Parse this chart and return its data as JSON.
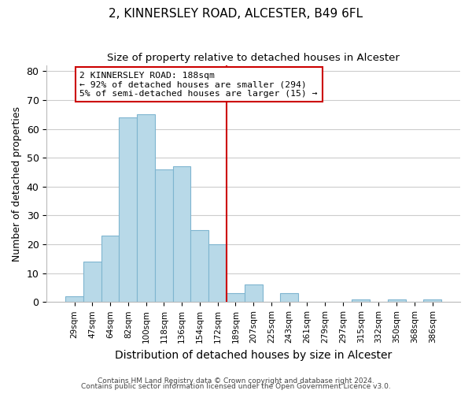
{
  "title": "2, KINNERSLEY ROAD, ALCESTER, B49 6FL",
  "subtitle": "Size of property relative to detached houses in Alcester",
  "xlabel": "Distribution of detached houses by size in Alcester",
  "ylabel": "Number of detached properties",
  "bar_labels": [
    "29sqm",
    "47sqm",
    "64sqm",
    "82sqm",
    "100sqm",
    "118sqm",
    "136sqm",
    "154sqm",
    "172sqm",
    "189sqm",
    "207sqm",
    "225sqm",
    "243sqm",
    "261sqm",
    "279sqm",
    "297sqm",
    "315sqm",
    "332sqm",
    "350sqm",
    "368sqm",
    "386sqm"
  ],
  "bar_values": [
    2,
    14,
    23,
    64,
    65,
    46,
    47,
    25,
    20,
    3,
    6,
    0,
    3,
    0,
    0,
    0,
    1,
    0,
    1,
    0,
    1
  ],
  "bar_color": "#b8d9e8",
  "bar_edge_color": "#7fb5d0",
  "vline_x": 8.5,
  "vline_color": "#cc0000",
  "annotation_title": "2 KINNERSLEY ROAD: 188sqm",
  "annotation_line1": "← 92% of detached houses are smaller (294)",
  "annotation_line2": "5% of semi-detached houses are larger (15) →",
  "ylim": [
    0,
    82
  ],
  "yticks": [
    0,
    10,
    20,
    30,
    40,
    50,
    60,
    70,
    80
  ],
  "footer1": "Contains HM Land Registry data © Crown copyright and database right 2024.",
  "footer2": "Contains public sector information licensed under the Open Government Licence v3.0.",
  "background_color": "#ffffff",
  "grid_color": "#cccccc"
}
